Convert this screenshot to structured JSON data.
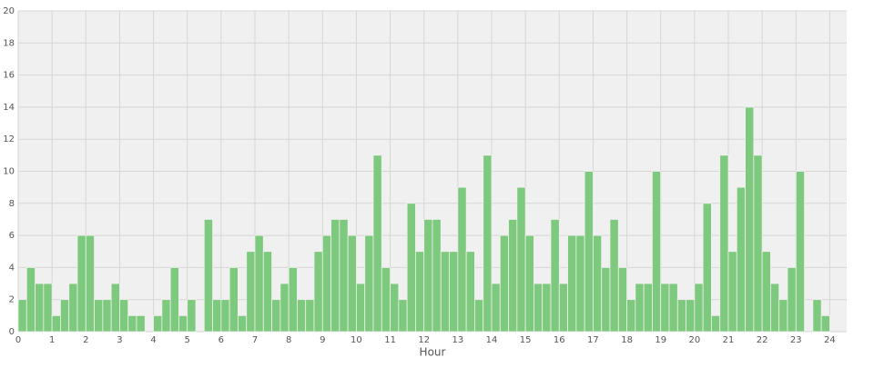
{
  "chart_data": {
    "type": "histogram",
    "x_label": "Hour",
    "bins": [
      0,
      0.25,
      0.5,
      0.75,
      1,
      1.25,
      1.5,
      1.75,
      2,
      2.25,
      2.5,
      2.75,
      3,
      3.25,
      3.5,
      3.75,
      4,
      4.25,
      4.5,
      4.75,
      5,
      5.25,
      5.5,
      5.75,
      6,
      6.25,
      6.5,
      6.75,
      7,
      7.25,
      7.5,
      7.75,
      8,
      8.25,
      8.5,
      8.75,
      9,
      9.25,
      9.5,
      9.75,
      10,
      10.25,
      10.5,
      10.75,
      11,
      11.25,
      11.5,
      11.75,
      12,
      12.25,
      12.5,
      12.75,
      13,
      13.25,
      13.5,
      13.75,
      14,
      14.25,
      14.5,
      14.75,
      15,
      15.25,
      15.5,
      15.75,
      16,
      16.25,
      16.5,
      16.75,
      17,
      17.25,
      17.5,
      17.75,
      18,
      18.25,
      18.5,
      18.75,
      19,
      19.25,
      19.5,
      19.75,
      20,
      20.25,
      20.5,
      20.75,
      21,
      21.25,
      21.5,
      21.75,
      22,
      22.25,
      22.5,
      22.75,
      23,
      23.25,
      23.5,
      23.75,
      24
    ],
    "values": [
      2,
      4,
      3,
      3,
      1,
      2,
      3,
      6,
      6,
      2,
      2,
      3,
      2,
      1,
      1,
      0,
      1,
      2,
      4,
      1,
      2,
      0,
      7,
      2,
      2,
      4,
      1,
      5,
      6,
      5,
      2,
      3,
      4,
      2,
      2,
      5,
      6,
      7,
      7,
      6,
      3,
      6,
      11,
      4,
      3,
      2,
      8,
      5,
      7,
      7,
      5,
      5,
      9,
      5,
      2,
      11,
      3,
      6,
      7,
      9,
      6,
      3,
      3,
      7,
      3,
      6,
      6,
      10,
      6,
      4,
      7,
      4,
      2,
      3,
      3,
      10,
      3,
      3,
      2,
      2,
      3,
      8,
      1,
      11,
      5,
      9,
      14,
      11,
      5,
      3,
      2,
      4,
      10,
      0,
      2,
      1
    ],
    "color": "#7dc97d",
    "xlim": [
      0,
      24.5
    ],
    "xticks": [
      0,
      1,
      2,
      3,
      4,
      5,
      6,
      7,
      8,
      9,
      10,
      11,
      12,
      13,
      14,
      15,
      16,
      17,
      18,
      19,
      20,
      21,
      22,
      23,
      24
    ],
    "ylim": [
      0,
      20
    ],
    "yticks": [
      0,
      2,
      4,
      6,
      8,
      10,
      12,
      14,
      16,
      18,
      20
    ],
    "grid": true
  }
}
